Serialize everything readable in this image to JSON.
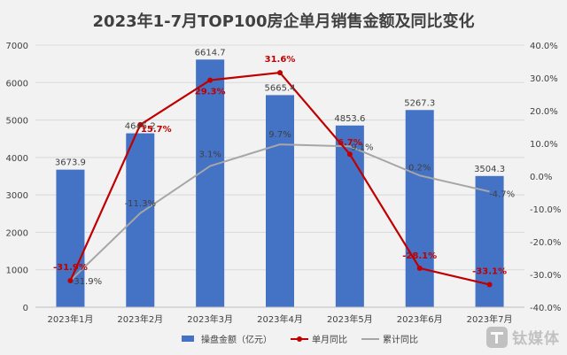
{
  "colors": {
    "bar": "#4472c4",
    "single": "#c00000",
    "cumulative": "#a6a6a6",
    "grid": "#d9d9d9",
    "text": "#404040",
    "background": "#f2f2f2"
  },
  "watermark": {
    "text": "钛媒体",
    "icon": "tmt-logo-icon"
  },
  "chart_data": {
    "type": "bar",
    "title": "2023年1-7月TOP100房企单月销售金额及同比变化",
    "categories": [
      "2023年1月",
      "2023年2月",
      "2023年3月",
      "2023年4月",
      "2023年5月",
      "2023年6月",
      "2023年7月"
    ],
    "series": [
      {
        "name": "操盘金额（亿元）",
        "type": "bar",
        "axis": "left",
        "values": [
          3673.9,
          4645.2,
          6614.7,
          5665.4,
          4853.6,
          5267.3,
          3504.3
        ],
        "labels": [
          "3673.9",
          "4645.2",
          "6614.7",
          "5665.4",
          "4853.6",
          "5267.3",
          "3504.3"
        ]
      },
      {
        "name": "单月同比",
        "type": "line",
        "axis": "right",
        "values": [
          -31.9,
          15.7,
          29.3,
          31.6,
          6.7,
          -28.1,
          -33.1
        ],
        "labels": [
          "-31.9%",
          "15.7%",
          "29.3%",
          "31.6%",
          "6.7%",
          "-28.1%",
          "-33.1%"
        ]
      },
      {
        "name": "累计同比",
        "type": "line",
        "axis": "right",
        "values": [
          -31.9,
          -11.3,
          3.1,
          9.7,
          9.1,
          0.2,
          -4.7
        ],
        "labels": [
          "-31.9%",
          "-11.3%",
          "3.1%",
          "9.7%",
          "9.1%",
          "0.2%",
          "-4.7%"
        ]
      }
    ],
    "y_left": {
      "min": 0,
      "max": 7000,
      "step": 1000,
      "ticks": [
        "0",
        "1000",
        "2000",
        "3000",
        "4000",
        "5000",
        "6000",
        "7000"
      ]
    },
    "y_right": {
      "min": -40,
      "max": 40,
      "step": 10,
      "ticks": [
        "-40.0%",
        "-30.0%",
        "-20.0%",
        "-10.0%",
        "0.0%",
        "10.0%",
        "20.0%",
        "30.0%",
        "40.0%"
      ]
    },
    "grid": true,
    "legend": "bottom"
  }
}
